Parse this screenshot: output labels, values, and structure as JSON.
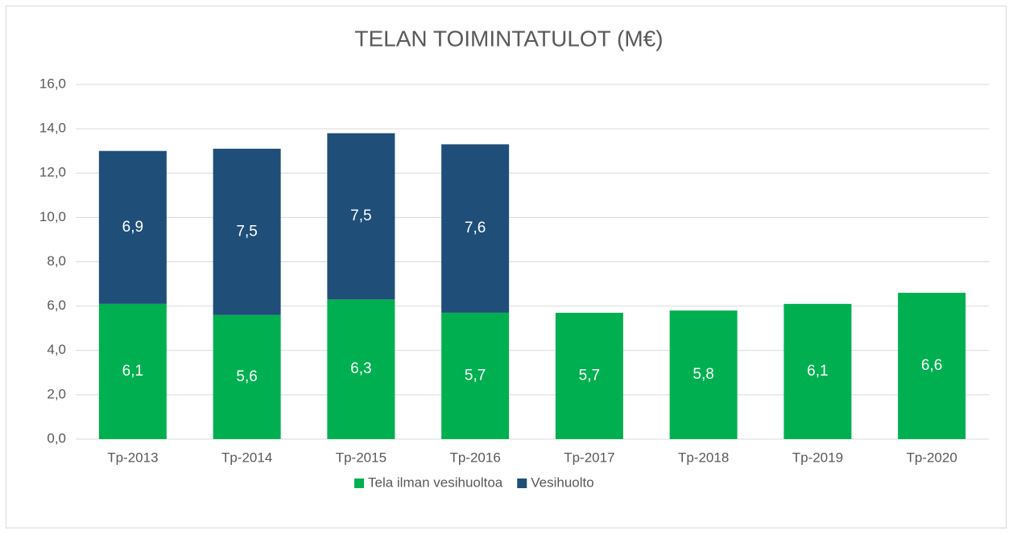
{
  "chart_data": {
    "type": "stacked_bar",
    "title": "TELAN TOIMINTATULOT (M€)",
    "categories": [
      "Tp-2013",
      "Tp-2014",
      "Tp-2015",
      "Tp-2016",
      "Tp-2017",
      "Tp-2018",
      "Tp-2019",
      "Tp-2020"
    ],
    "series": [
      {
        "name": "Tela ilman vesihuoltoa",
        "color": "#00b050",
        "values": [
          6.1,
          5.6,
          6.3,
          5.7,
          5.7,
          5.8,
          6.1,
          6.6
        ],
        "value_labels": [
          "6,1",
          "5,6",
          "6,3",
          "5,7",
          "5,7",
          "5,8",
          "6,1",
          "6,6"
        ]
      },
      {
        "name": "Vesihuolto",
        "color": "#1f4e79",
        "values": [
          6.9,
          7.5,
          7.5,
          7.6,
          null,
          null,
          null,
          null
        ],
        "value_labels": [
          "6,9",
          "7,5",
          "7,5",
          "7,6",
          null,
          null,
          null,
          null
        ]
      }
    ],
    "ylim": [
      0,
      16
    ],
    "yticks": [
      {
        "value": 0,
        "label": "0,0"
      },
      {
        "value": 2,
        "label": "2,0"
      },
      {
        "value": 4,
        "label": "4,0"
      },
      {
        "value": 6,
        "label": "6,0"
      },
      {
        "value": 8,
        "label": "8,0"
      },
      {
        "value": 10,
        "label": "10,0"
      },
      {
        "value": 12,
        "label": "12,0"
      },
      {
        "value": 14,
        "label": "14,0"
      },
      {
        "value": 16,
        "label": "16,0"
      }
    ],
    "grid": true,
    "legend": "bottom"
  }
}
